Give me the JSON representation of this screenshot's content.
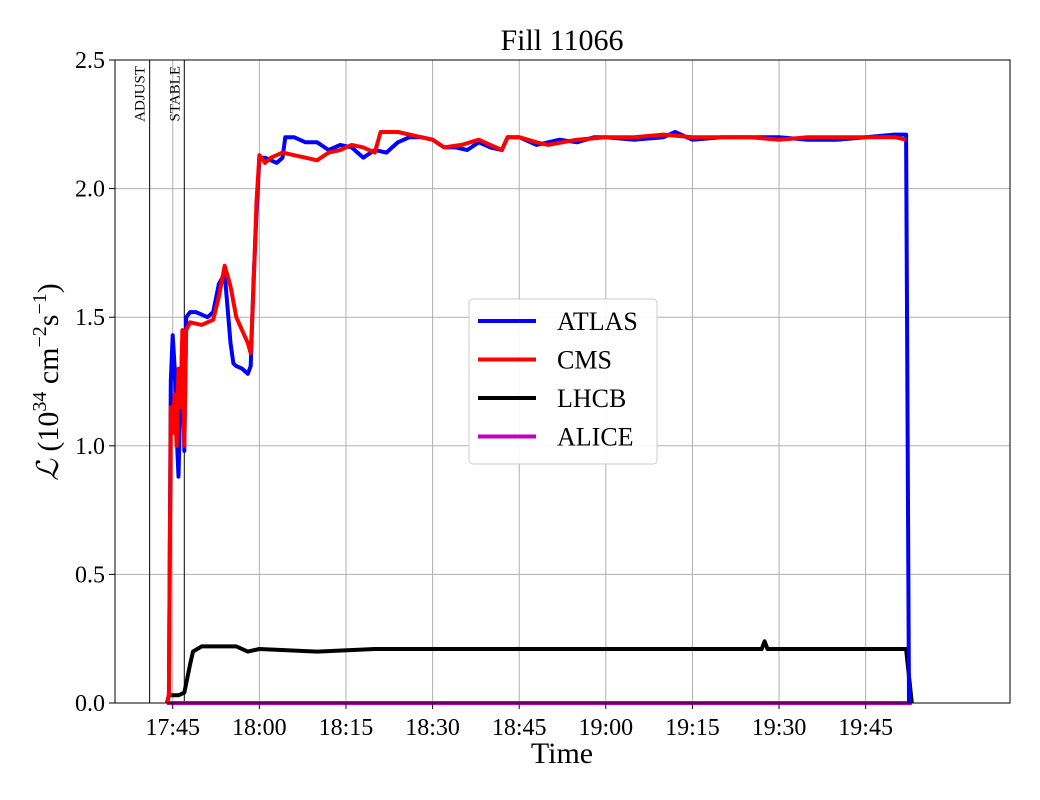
{
  "chart_data": {
    "type": "line",
    "title": "Fill 11066",
    "xlabel": "Time",
    "ylabel": "ℒ (10³⁴ cm⁻²s⁻¹)",
    "ylabel_parts": {
      "symbol": "ℒ",
      "open": " (10",
      "exp1": "34",
      "unit1": " cm",
      "exp2": "−2",
      "unit2": "s",
      "exp3": "−1",
      "close": ")"
    },
    "x_time_range": [
      "17:35",
      "20:10"
    ],
    "ylim": [
      0,
      2.5
    ],
    "grid": true,
    "legend_position": "center",
    "x_ticks": [
      "17:45",
      "18:00",
      "18:15",
      "18:30",
      "18:45",
      "19:00",
      "19:15",
      "19:30",
      "19:45"
    ],
    "y_ticks": [
      "0.0",
      "0.5",
      "1.0",
      "1.5",
      "2.0",
      "2.5"
    ],
    "annotations": [
      {
        "label": "ADJUST",
        "time": "17:41"
      },
      {
        "label": "STABLE",
        "time": "17:47"
      }
    ],
    "series": [
      {
        "name": "ATLAS",
        "color": "#0000ff",
        "points": [
          [
            "17:44:00",
            0.0
          ],
          [
            "17:44:20",
            0.03
          ],
          [
            "17:44:40",
            1.25
          ],
          [
            "17:45:00",
            1.43
          ],
          [
            "17:45:20",
            1.3
          ],
          [
            "17:45:40",
            1.05
          ],
          [
            "17:46:00",
            0.88
          ],
          [
            "17:46:20",
            1.2
          ],
          [
            "17:46:40",
            1.4
          ],
          [
            "17:47:00",
            0.98
          ],
          [
            "17:47:20",
            1.5
          ],
          [
            "17:48:00",
            1.52
          ],
          [
            "17:49:00",
            1.52
          ],
          [
            "17:50:00",
            1.51
          ],
          [
            "17:51:00",
            1.5
          ],
          [
            "17:52:00",
            1.52
          ],
          [
            "17:53:00",
            1.63
          ],
          [
            "17:54:00",
            1.67
          ],
          [
            "17:55:00",
            1.4
          ],
          [
            "17:55:30",
            1.32
          ],
          [
            "17:56:00",
            1.31
          ],
          [
            "17:57:00",
            1.3
          ],
          [
            "17:58:00",
            1.28
          ],
          [
            "17:58:30",
            1.31
          ],
          [
            "17:59:00",
            1.65
          ],
          [
            "17:59:30",
            1.9
          ],
          [
            "18:00:00",
            2.12
          ],
          [
            "18:01:00",
            2.12
          ],
          [
            "18:02:00",
            2.11
          ],
          [
            "18:03:00",
            2.1
          ],
          [
            "18:04:00",
            2.12
          ],
          [
            "18:04:30",
            2.2
          ],
          [
            "18:06:00",
            2.2
          ],
          [
            "18:08:00",
            2.18
          ],
          [
            "18:10:00",
            2.18
          ],
          [
            "18:12:00",
            2.15
          ],
          [
            "18:14:00",
            2.17
          ],
          [
            "18:16:00",
            2.16
          ],
          [
            "18:18:00",
            2.12
          ],
          [
            "18:20:00",
            2.15
          ],
          [
            "18:22:00",
            2.14
          ],
          [
            "18:24:00",
            2.18
          ],
          [
            "18:26:00",
            2.2
          ],
          [
            "18:28:00",
            2.2
          ],
          [
            "18:30:00",
            2.19
          ],
          [
            "18:32:00",
            2.16
          ],
          [
            "18:34:00",
            2.16
          ],
          [
            "18:36:00",
            2.15
          ],
          [
            "18:38:00",
            2.18
          ],
          [
            "18:40:00",
            2.16
          ],
          [
            "18:42:00",
            2.15
          ],
          [
            "18:43:00",
            2.2
          ],
          [
            "18:45:00",
            2.2
          ],
          [
            "18:48:00",
            2.17
          ],
          [
            "18:50:00",
            2.18
          ],
          [
            "18:52:00",
            2.19
          ],
          [
            "18:55:00",
            2.18
          ],
          [
            "18:58:00",
            2.2
          ],
          [
            "19:00:00",
            2.2
          ],
          [
            "19:05:00",
            2.19
          ],
          [
            "19:10:00",
            2.2
          ],
          [
            "19:12:00",
            2.22
          ],
          [
            "19:15:00",
            2.19
          ],
          [
            "19:20:00",
            2.2
          ],
          [
            "19:25:00",
            2.2
          ],
          [
            "19:30:00",
            2.2
          ],
          [
            "19:35:00",
            2.19
          ],
          [
            "19:40:00",
            2.19
          ],
          [
            "19:45:00",
            2.2
          ],
          [
            "19:50:00",
            2.21
          ],
          [
            "19:52:00",
            2.21
          ],
          [
            "19:52:30",
            0.0
          ]
        ]
      },
      {
        "name": "CMS",
        "color": "#ff0000",
        "points": [
          [
            "17:44:00",
            0.0
          ],
          [
            "17:44:20",
            0.03
          ],
          [
            "17:44:40",
            1.15
          ],
          [
            "17:45:00",
            1.05
          ],
          [
            "17:45:20",
            1.2
          ],
          [
            "17:45:40",
            1.0
          ],
          [
            "17:46:00",
            1.3
          ],
          [
            "17:46:20",
            1.15
          ],
          [
            "17:46:40",
            1.45
          ],
          [
            "17:47:00",
            1.0
          ],
          [
            "17:47:20",
            1.45
          ],
          [
            "17:48:00",
            1.48
          ],
          [
            "17:50:00",
            1.47
          ],
          [
            "17:52:00",
            1.49
          ],
          [
            "17:53:00",
            1.58
          ],
          [
            "17:54:00",
            1.7
          ],
          [
            "17:55:00",
            1.62
          ],
          [
            "17:56:00",
            1.5
          ],
          [
            "17:57:00",
            1.45
          ],
          [
            "17:58:00",
            1.4
          ],
          [
            "17:58:30",
            1.36
          ],
          [
            "17:59:00",
            1.62
          ],
          [
            "17:59:30",
            1.95
          ],
          [
            "18:00:00",
            2.13
          ],
          [
            "18:01:00",
            2.1
          ],
          [
            "18:02:00",
            2.12
          ],
          [
            "18:04:00",
            2.14
          ],
          [
            "18:06:00",
            2.13
          ],
          [
            "18:08:00",
            2.12
          ],
          [
            "18:10:00",
            2.11
          ],
          [
            "18:12:00",
            2.14
          ],
          [
            "18:14:00",
            2.15
          ],
          [
            "18:16:00",
            2.17
          ],
          [
            "18:18:00",
            2.16
          ],
          [
            "18:20:00",
            2.14
          ],
          [
            "18:21:00",
            2.22
          ],
          [
            "18:24:00",
            2.22
          ],
          [
            "18:28:00",
            2.2
          ],
          [
            "18:30:00",
            2.19
          ],
          [
            "18:32:00",
            2.16
          ],
          [
            "18:35:00",
            2.17
          ],
          [
            "18:38:00",
            2.19
          ],
          [
            "18:40:00",
            2.17
          ],
          [
            "18:42:00",
            2.15
          ],
          [
            "18:43:00",
            2.2
          ],
          [
            "18:45:00",
            2.2
          ],
          [
            "18:48:00",
            2.18
          ],
          [
            "18:50:00",
            2.17
          ],
          [
            "18:55:00",
            2.19
          ],
          [
            "19:00:00",
            2.2
          ],
          [
            "19:05:00",
            2.2
          ],
          [
            "19:10:00",
            2.21
          ],
          [
            "19:15:00",
            2.2
          ],
          [
            "19:20:00",
            2.2
          ],
          [
            "19:25:00",
            2.2
          ],
          [
            "19:30:00",
            2.19
          ],
          [
            "19:35:00",
            2.2
          ],
          [
            "19:40:00",
            2.2
          ],
          [
            "19:45:00",
            2.2
          ],
          [
            "19:50:00",
            2.2
          ],
          [
            "19:52:00",
            2.19
          ]
        ]
      },
      {
        "name": "LHCB",
        "color": "#000000",
        "points": [
          [
            "17:44:00",
            0.0
          ],
          [
            "17:44:20",
            0.03
          ],
          [
            "17:46:00",
            0.03
          ],
          [
            "17:47:00",
            0.04
          ],
          [
            "17:48:00",
            0.15
          ],
          [
            "17:48:30",
            0.2
          ],
          [
            "17:50:00",
            0.22
          ],
          [
            "17:53:00",
            0.22
          ],
          [
            "17:56:00",
            0.22
          ],
          [
            "17:58:00",
            0.2
          ],
          [
            "18:00:00",
            0.21
          ],
          [
            "18:10:00",
            0.2
          ],
          [
            "18:20:00",
            0.21
          ],
          [
            "18:30:00",
            0.21
          ],
          [
            "18:40:00",
            0.21
          ],
          [
            "18:50:00",
            0.21
          ],
          [
            "19:00:00",
            0.21
          ],
          [
            "19:10:00",
            0.21
          ],
          [
            "19:20:00",
            0.21
          ],
          [
            "19:27:00",
            0.21
          ],
          [
            "19:27:30",
            0.24
          ],
          [
            "19:28:00",
            0.21
          ],
          [
            "19:40:00",
            0.21
          ],
          [
            "19:50:00",
            0.21
          ],
          [
            "19:52:00",
            0.21
          ],
          [
            "19:53:00",
            0.0
          ]
        ]
      },
      {
        "name": "ALICE",
        "color": "#bf00bf",
        "points": [
          [
            "17:44:00",
            0.0
          ],
          [
            "19:53:00",
            0.0
          ]
        ]
      }
    ]
  }
}
